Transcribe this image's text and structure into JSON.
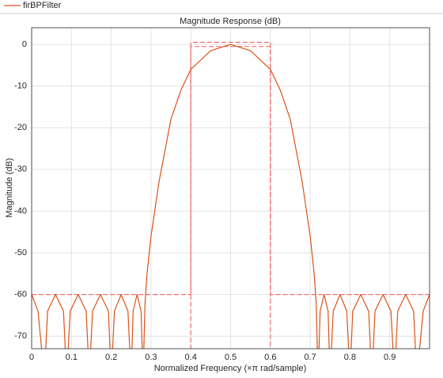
{
  "chart_data": {
    "type": "line",
    "title": "Magnitude Response (dB)",
    "xlabel": "Normalized Frequency (×π rad/sample)",
    "ylabel": "Magnitude (dB)",
    "xlim": [
      0,
      1
    ],
    "ylim": [
      -73,
      4
    ],
    "xticks": [
      0,
      0.1,
      0.2,
      0.3,
      0.4,
      0.5,
      0.6,
      0.7,
      0.8,
      0.9
    ],
    "yticks": [
      0,
      -10,
      -20,
      -30,
      -40,
      -50,
      -60,
      -70
    ],
    "grid": true,
    "series": [
      {
        "name": "firBPFilter",
        "color": "#d95319",
        "x": [
          0,
          0.016,
          0.032,
          0.04,
          0.06,
          0.08,
          0.088,
          0.097,
          0.117,
          0.137,
          0.145,
          0.153,
          0.173,
          0.193,
          0.2,
          0.208,
          0.225,
          0.242,
          0.25,
          0.255,
          0.265,
          0.275,
          0.28,
          0.285,
          0.29,
          0.3,
          0.32,
          0.35,
          0.375,
          0.4,
          0.45,
          0.5,
          0.55,
          0.6,
          0.625,
          0.65,
          0.68,
          0.7,
          0.71,
          0.715,
          0.72,
          0.725,
          0.735,
          0.745,
          0.75,
          0.758,
          0.775,
          0.792,
          0.8,
          0.807,
          0.827,
          0.847,
          0.855,
          0.863,
          0.883,
          0.903,
          0.912,
          0.92,
          0.94,
          0.96,
          0.968,
          0.984,
          1
        ],
        "values": [
          -60,
          -64,
          -80,
          -64,
          -60,
          -64,
          -80,
          -64,
          -60,
          -64,
          -80,
          -64,
          -60,
          -64,
          -80,
          -64,
          -60,
          -64,
          -80,
          -64,
          -60,
          -64,
          -80,
          -62,
          -55,
          -46,
          -33,
          -18,
          -11,
          -6,
          -1.5,
          0,
          -1.5,
          -6,
          -11,
          -18,
          -33,
          -46,
          -55,
          -62,
          -80,
          -64,
          -60,
          -64,
          -80,
          -64,
          -60,
          -64,
          -80,
          -64,
          -60,
          -64,
          -80,
          -64,
          -60,
          -64,
          -80,
          -64,
          -60,
          -64,
          -80,
          -64,
          -60
        ]
      }
    ],
    "mask_color": "#f07070",
    "mask": [
      {
        "x": [
          0,
          0.4,
          0.4,
          0.6,
          0.6,
          1
        ],
        "values": [
          -60,
          -60,
          0.5,
          0.5,
          -60,
          -60
        ]
      },
      {
        "x": [
          0.4,
          0.4,
          0.6,
          0.6
        ],
        "values": [
          -80,
          -0.5,
          -0.5,
          -80
        ]
      }
    ]
  }
}
